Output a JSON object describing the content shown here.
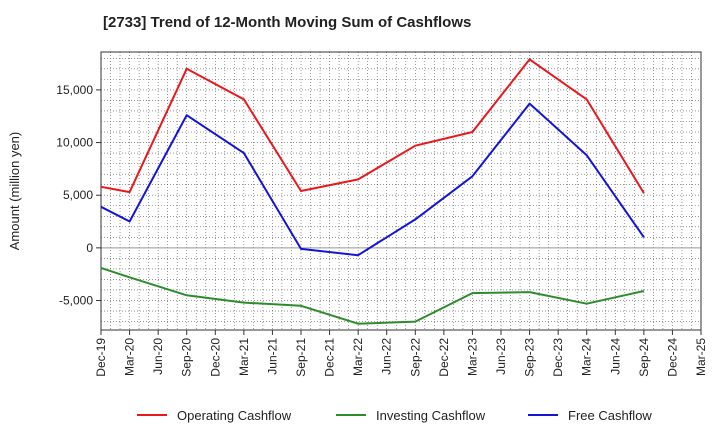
{
  "chart_data": {
    "type": "line",
    "title": "[2733]  Trend of 12-Month Moving Sum of Cashflows",
    "xlabel": "",
    "ylabel": "Amount (million yen)",
    "categories": [
      "Dec-19",
      "Mar-20",
      "Jun-20",
      "Sep-20",
      "Dec-20",
      "Mar-21",
      "Jun-21",
      "Sep-21",
      "Dec-21",
      "Mar-22",
      "Jun-22",
      "Sep-22",
      "Dec-22",
      "Mar-23",
      "Jun-23",
      "Sep-23",
      "Dec-23",
      "Mar-24",
      "Jun-24",
      "Sep-24",
      "Dec-24",
      "Mar-25"
    ],
    "ylim": [
      -7800,
      18600
    ],
    "yticks": [
      -5000,
      0,
      5000,
      10000,
      15000
    ],
    "ytick_labels": [
      "-5,000",
      "0",
      "5,000",
      "10,000",
      "15,000"
    ],
    "grid": true,
    "legend_position": "bottom",
    "series": [
      {
        "name": "Operating Cashflow",
        "color": "#e8181c",
        "points": [
          [
            "Dec-19",
            5800
          ],
          [
            "Mar-20",
            5300
          ],
          [
            "Sep-20",
            17000
          ],
          [
            "Mar-21",
            14100
          ],
          [
            "Sep-21",
            5400
          ],
          [
            "Mar-22",
            6500
          ],
          [
            "Sep-22",
            9700
          ],
          [
            "Mar-23",
            11000
          ],
          [
            "Sep-23",
            17900
          ],
          [
            "Mar-24",
            14100
          ],
          [
            "Sep-24",
            5200
          ]
        ]
      },
      {
        "name": "Investing Cashflow",
        "color": "#2e8b2e",
        "points": [
          [
            "Dec-19",
            -1900
          ],
          [
            "Mar-20",
            -2800
          ],
          [
            "Sep-20",
            -4500
          ],
          [
            "Mar-21",
            -5200
          ],
          [
            "Sep-21",
            -5500
          ],
          [
            "Mar-22",
            -7200
          ],
          [
            "Sep-22",
            -7000
          ],
          [
            "Mar-23",
            -4300
          ],
          [
            "Sep-23",
            -4200
          ],
          [
            "Mar-24",
            -5300
          ],
          [
            "Sep-24",
            -4100
          ]
        ]
      },
      {
        "name": "Free Cashflow",
        "color": "#1414d8",
        "points": [
          [
            "Dec-19",
            3900
          ],
          [
            "Mar-20",
            2500
          ],
          [
            "Sep-20",
            12600
          ],
          [
            "Mar-21",
            9000
          ],
          [
            "Sep-21",
            -100
          ],
          [
            "Mar-22",
            -700
          ],
          [
            "Sep-22",
            2700
          ],
          [
            "Mar-23",
            6800
          ],
          [
            "Sep-23",
            13700
          ],
          [
            "Mar-24",
            8800
          ],
          [
            "Sep-24",
            1000
          ]
        ]
      }
    ]
  }
}
